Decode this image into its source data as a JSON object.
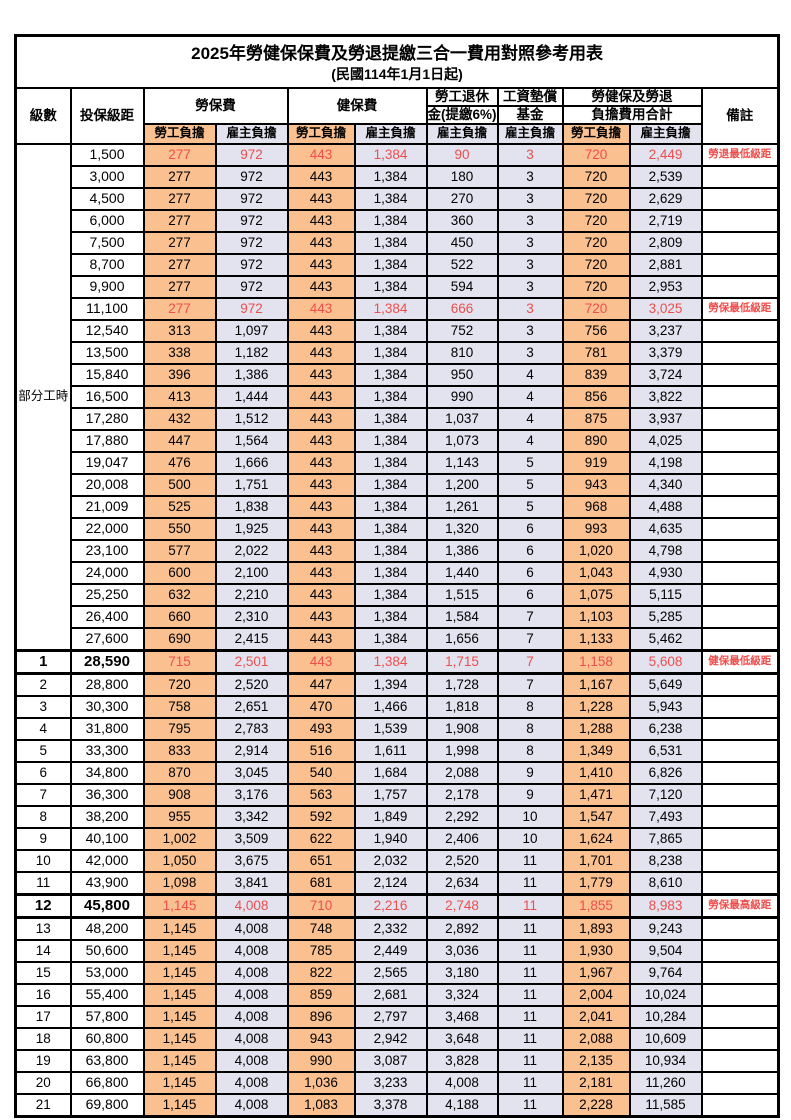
{
  "title": "2025年勞健保保費及勞退提繳三合一費用對照參考用表",
  "subtitle": "(民國114年1月1日起)",
  "header": {
    "level": "級數",
    "bracket": "投保級距",
    "labor_insurance": "勞保費",
    "health_insurance": "健保費",
    "pension_line1": "勞工退休",
    "pension_line2": "金(提繳6%)",
    "wage_fund_line1": "工資墊償",
    "wage_fund_line2": "基金",
    "total_line1": "勞健保及勞退",
    "total_line2": "負擔費用合計",
    "remark": "備註",
    "employee_burden": "勞工負擔",
    "employer_burden": "雇主負擔"
  },
  "part_time": {
    "label": "部分工時",
    "row_span": 23
  },
  "colors": {
    "employee_col_bg": "#FAC090",
    "employer_col_bg": "#E3E3F0",
    "highlight_text": "#ee4e4b",
    "border": "#000000"
  },
  "rows": [
    {
      "lv": "",
      "br": "1,500",
      "v": [
        "277",
        "972",
        "443",
        "1,384",
        "90",
        "3",
        "720",
        "2,449"
      ],
      "rm": "勞退最低級距",
      "red": true,
      "bold": false,
      "thick": false
    },
    {
      "lv": "",
      "br": "3,000",
      "v": [
        "277",
        "972",
        "443",
        "1,384",
        "180",
        "3",
        "720",
        "2,539"
      ],
      "rm": "",
      "red": false,
      "bold": false,
      "thick": false
    },
    {
      "lv": "",
      "br": "4,500",
      "v": [
        "277",
        "972",
        "443",
        "1,384",
        "270",
        "3",
        "720",
        "2,629"
      ],
      "rm": "",
      "red": false,
      "bold": false,
      "thick": false
    },
    {
      "lv": "",
      "br": "6,000",
      "v": [
        "277",
        "972",
        "443",
        "1,384",
        "360",
        "3",
        "720",
        "2,719"
      ],
      "rm": "",
      "red": false,
      "bold": false,
      "thick": false
    },
    {
      "lv": "",
      "br": "7,500",
      "v": [
        "277",
        "972",
        "443",
        "1,384",
        "450",
        "3",
        "720",
        "2,809"
      ],
      "rm": "",
      "red": false,
      "bold": false,
      "thick": false
    },
    {
      "lv": "",
      "br": "8,700",
      "v": [
        "277",
        "972",
        "443",
        "1,384",
        "522",
        "3",
        "720",
        "2,881"
      ],
      "rm": "",
      "red": false,
      "bold": false,
      "thick": false
    },
    {
      "lv": "",
      "br": "9,900",
      "v": [
        "277",
        "972",
        "443",
        "1,384",
        "594",
        "3",
        "720",
        "2,953"
      ],
      "rm": "",
      "red": false,
      "bold": false,
      "thick": false
    },
    {
      "lv": "",
      "br": "11,100",
      "v": [
        "277",
        "972",
        "443",
        "1,384",
        "666",
        "3",
        "720",
        "3,025"
      ],
      "rm": "勞保最低級距",
      "red": true,
      "bold": false,
      "thick": false
    },
    {
      "lv": "",
      "br": "12,540",
      "v": [
        "313",
        "1,097",
        "443",
        "1,384",
        "752",
        "3",
        "756",
        "3,237"
      ],
      "rm": "",
      "red": false,
      "bold": false,
      "thick": false
    },
    {
      "lv": "",
      "br": "13,500",
      "v": [
        "338",
        "1,182",
        "443",
        "1,384",
        "810",
        "3",
        "781",
        "3,379"
      ],
      "rm": "",
      "red": false,
      "bold": false,
      "thick": false
    },
    {
      "lv": "",
      "br": "15,840",
      "v": [
        "396",
        "1,386",
        "443",
        "1,384",
        "950",
        "4",
        "839",
        "3,724"
      ],
      "rm": "",
      "red": false,
      "bold": false,
      "thick": false
    },
    {
      "lv": "",
      "br": "16,500",
      "v": [
        "413",
        "1,444",
        "443",
        "1,384",
        "990",
        "4",
        "856",
        "3,822"
      ],
      "rm": "",
      "red": false,
      "bold": false,
      "thick": false
    },
    {
      "lv": "",
      "br": "17,280",
      "v": [
        "432",
        "1,512",
        "443",
        "1,384",
        "1,037",
        "4",
        "875",
        "3,937"
      ],
      "rm": "",
      "red": false,
      "bold": false,
      "thick": false
    },
    {
      "lv": "",
      "br": "17,880",
      "v": [
        "447",
        "1,564",
        "443",
        "1,384",
        "1,073",
        "4",
        "890",
        "4,025"
      ],
      "rm": "",
      "red": false,
      "bold": false,
      "thick": false
    },
    {
      "lv": "",
      "br": "19,047",
      "v": [
        "476",
        "1,666",
        "443",
        "1,384",
        "1,143",
        "5",
        "919",
        "4,198"
      ],
      "rm": "",
      "red": false,
      "bold": false,
      "thick": false
    },
    {
      "lv": "",
      "br": "20,008",
      "v": [
        "500",
        "1,751",
        "443",
        "1,384",
        "1,200",
        "5",
        "943",
        "4,340"
      ],
      "rm": "",
      "red": false,
      "bold": false,
      "thick": false
    },
    {
      "lv": "",
      "br": "21,009",
      "v": [
        "525",
        "1,838",
        "443",
        "1,384",
        "1,261",
        "5",
        "968",
        "4,488"
      ],
      "rm": "",
      "red": false,
      "bold": false,
      "thick": false
    },
    {
      "lv": "",
      "br": "22,000",
      "v": [
        "550",
        "1,925",
        "443",
        "1,384",
        "1,320",
        "6",
        "993",
        "4,635"
      ],
      "rm": "",
      "red": false,
      "bold": false,
      "thick": false
    },
    {
      "lv": "",
      "br": "23,100",
      "v": [
        "577",
        "2,022",
        "443",
        "1,384",
        "1,386",
        "6",
        "1,020",
        "4,798"
      ],
      "rm": "",
      "red": false,
      "bold": false,
      "thick": false
    },
    {
      "lv": "",
      "br": "24,000",
      "v": [
        "600",
        "2,100",
        "443",
        "1,384",
        "1,440",
        "6",
        "1,043",
        "4,930"
      ],
      "rm": "",
      "red": false,
      "bold": false,
      "thick": false
    },
    {
      "lv": "",
      "br": "25,250",
      "v": [
        "632",
        "2,210",
        "443",
        "1,384",
        "1,515",
        "6",
        "1,075",
        "5,115"
      ],
      "rm": "",
      "red": false,
      "bold": false,
      "thick": false
    },
    {
      "lv": "",
      "br": "26,400",
      "v": [
        "660",
        "2,310",
        "443",
        "1,384",
        "1,584",
        "7",
        "1,103",
        "5,285"
      ],
      "rm": "",
      "red": false,
      "bold": false,
      "thick": false
    },
    {
      "lv": "",
      "br": "27,600",
      "v": [
        "690",
        "2,415",
        "443",
        "1,384",
        "1,656",
        "7",
        "1,133",
        "5,462"
      ],
      "rm": "",
      "red": false,
      "bold": false,
      "thick": false
    },
    {
      "lv": "1",
      "br": "28,590",
      "v": [
        "715",
        "2,501",
        "443",
        "1,384",
        "1,715",
        "7",
        "1,158",
        "5,608"
      ],
      "rm": "健保最低級距",
      "red": true,
      "bold": true,
      "thick": true
    },
    {
      "lv": "2",
      "br": "28,800",
      "v": [
        "720",
        "2,520",
        "447",
        "1,394",
        "1,728",
        "7",
        "1,167",
        "5,649"
      ],
      "rm": "",
      "red": false,
      "bold": false,
      "thick": false
    },
    {
      "lv": "3",
      "br": "30,300",
      "v": [
        "758",
        "2,651",
        "470",
        "1,466",
        "1,818",
        "8",
        "1,228",
        "5,943"
      ],
      "rm": "",
      "red": false,
      "bold": false,
      "thick": false
    },
    {
      "lv": "4",
      "br": "31,800",
      "v": [
        "795",
        "2,783",
        "493",
        "1,539",
        "1,908",
        "8",
        "1,288",
        "6,238"
      ],
      "rm": "",
      "red": false,
      "bold": false,
      "thick": false
    },
    {
      "lv": "5",
      "br": "33,300",
      "v": [
        "833",
        "2,914",
        "516",
        "1,611",
        "1,998",
        "8",
        "1,349",
        "6,531"
      ],
      "rm": "",
      "red": false,
      "bold": false,
      "thick": false
    },
    {
      "lv": "6",
      "br": "34,800",
      "v": [
        "870",
        "3,045",
        "540",
        "1,684",
        "2,088",
        "9",
        "1,410",
        "6,826"
      ],
      "rm": "",
      "red": false,
      "bold": false,
      "thick": false
    },
    {
      "lv": "7",
      "br": "36,300",
      "v": [
        "908",
        "3,176",
        "563",
        "1,757",
        "2,178",
        "9",
        "1,471",
        "7,120"
      ],
      "rm": "",
      "red": false,
      "bold": false,
      "thick": false
    },
    {
      "lv": "8",
      "br": "38,200",
      "v": [
        "955",
        "3,342",
        "592",
        "1,849",
        "2,292",
        "10",
        "1,547",
        "7,493"
      ],
      "rm": "",
      "red": false,
      "bold": false,
      "thick": false
    },
    {
      "lv": "9",
      "br": "40,100",
      "v": [
        "1,002",
        "3,509",
        "622",
        "1,940",
        "2,406",
        "10",
        "1,624",
        "7,865"
      ],
      "rm": "",
      "red": false,
      "bold": false,
      "thick": false
    },
    {
      "lv": "10",
      "br": "42,000",
      "v": [
        "1,050",
        "3,675",
        "651",
        "2,032",
        "2,520",
        "11",
        "1,701",
        "8,238"
      ],
      "rm": "",
      "red": false,
      "bold": false,
      "thick": false
    },
    {
      "lv": "11",
      "br": "43,900",
      "v": [
        "1,098",
        "3,841",
        "681",
        "2,124",
        "2,634",
        "11",
        "1,779",
        "8,610"
      ],
      "rm": "",
      "red": false,
      "bold": false,
      "thick": false
    },
    {
      "lv": "12",
      "br": "45,800",
      "v": [
        "1,145",
        "4,008",
        "710",
        "2,216",
        "2,748",
        "11",
        "1,855",
        "8,983"
      ],
      "rm": "勞保最高級距",
      "red": true,
      "bold": true,
      "thick": true
    },
    {
      "lv": "13",
      "br": "48,200",
      "v": [
        "1,145",
        "4,008",
        "748",
        "2,332",
        "2,892",
        "11",
        "1,893",
        "9,243"
      ],
      "rm": "",
      "red": false,
      "bold": false,
      "thick": false
    },
    {
      "lv": "14",
      "br": "50,600",
      "v": [
        "1,145",
        "4,008",
        "785",
        "2,449",
        "3,036",
        "11",
        "1,930",
        "9,504"
      ],
      "rm": "",
      "red": false,
      "bold": false,
      "thick": false
    },
    {
      "lv": "15",
      "br": "53,000",
      "v": [
        "1,145",
        "4,008",
        "822",
        "2,565",
        "3,180",
        "11",
        "1,967",
        "9,764"
      ],
      "rm": "",
      "red": false,
      "bold": false,
      "thick": false
    },
    {
      "lv": "16",
      "br": "55,400",
      "v": [
        "1,145",
        "4,008",
        "859",
        "2,681",
        "3,324",
        "11",
        "2,004",
        "10,024"
      ],
      "rm": "",
      "red": false,
      "bold": false,
      "thick": false
    },
    {
      "lv": "17",
      "br": "57,800",
      "v": [
        "1,145",
        "4,008",
        "896",
        "2,797",
        "3,468",
        "11",
        "2,041",
        "10,284"
      ],
      "rm": "",
      "red": false,
      "bold": false,
      "thick": false
    },
    {
      "lv": "18",
      "br": "60,800",
      "v": [
        "1,145",
        "4,008",
        "943",
        "2,942",
        "3,648",
        "11",
        "2,088",
        "10,609"
      ],
      "rm": "",
      "red": false,
      "bold": false,
      "thick": false
    },
    {
      "lv": "19",
      "br": "63,800",
      "v": [
        "1,145",
        "4,008",
        "990",
        "3,087",
        "3,828",
        "11",
        "2,135",
        "10,934"
      ],
      "rm": "",
      "red": false,
      "bold": false,
      "thick": false
    },
    {
      "lv": "20",
      "br": "66,800",
      "v": [
        "1,145",
        "4,008",
        "1,036",
        "3,233",
        "4,008",
        "11",
        "2,181",
        "11,260"
      ],
      "rm": "",
      "red": false,
      "bold": false,
      "thick": false
    },
    {
      "lv": "21",
      "br": "69,800",
      "v": [
        "1,145",
        "4,008",
        "1,083",
        "3,378",
        "4,188",
        "11",
        "2,228",
        "11,585"
      ],
      "rm": "",
      "red": false,
      "bold": false,
      "thick": false
    }
  ],
  "column_kinds": [
    "emp",
    "er",
    "emp",
    "er",
    "er",
    "er",
    "emp",
    "er"
  ]
}
